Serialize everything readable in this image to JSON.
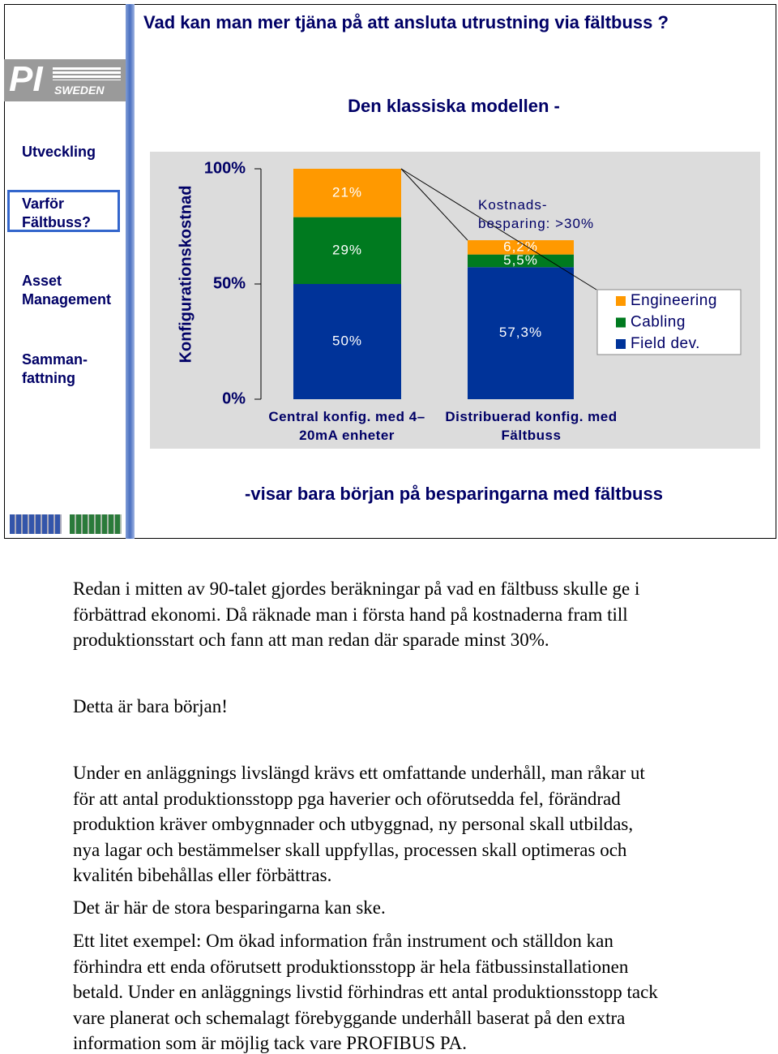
{
  "slide": {
    "title": "Vad kan man mer tjäna på att ansluta utrustning via fältbuss ?",
    "logo": "PI",
    "logo_sub": "SWEDEN",
    "nav": [
      "Utveckling",
      "Varför Fältbuss?",
      "Asset Management",
      "Samman-fattning"
    ],
    "subtitle": "Den klassiska modellen -",
    "footer": "-visar bara början på besparingarna med fältbuss"
  },
  "chart_data": {
    "type": "stacked-bar",
    "y_label": "Konfigurationskostnad",
    "annotation": "Kostnads-besparing: >30%",
    "categories": [
      "Central konfig. med 4–20mA enheter",
      "Distribuerad konfig. med Fältbuss"
    ],
    "series": [
      {
        "name": "Field dev.",
        "color": "#003399",
        "values": [
          50,
          57.3
        ],
        "value_labels": [
          "50%",
          "57,3%"
        ]
      },
      {
        "name": "Cabling",
        "color": "#007a1f",
        "values": [
          29,
          5.5
        ],
        "value_labels": [
          "29%",
          "5,5%"
        ]
      },
      {
        "name": "Engineering",
        "color": "#ff9900",
        "values": [
          21,
          6.2
        ],
        "value_labels": [
          "21%",
          "6,2%"
        ]
      }
    ],
    "ylim": [
      0,
      100
    ],
    "yticks": [
      {
        "value": 0,
        "label": "0%"
      },
      {
        "value": 50,
        "label": "50%"
      },
      {
        "value": 100,
        "label": "100%"
      }
    ]
  },
  "body": {
    "paragraphs": [
      [
        "Redan i mitten av 90-talet gjordes beräkningar på vad en fältbuss skulle ge i",
        "förbättrad ekonomi. Då räknade man i första hand på kostnaderna fram till",
        "produktionsstart och fann att man redan där sparade minst 30%."
      ],
      [
        "Detta är bara början!"
      ],
      [
        "Under en anläggnings livslängd krävs ett omfattande underhåll, man råkar ut",
        "för att antal produktionsstopp pga haverier och oförutsedda fel, förändrad",
        "produktion kräver ombygnnader och utbyggnad, ny personal skall utbildas,",
        "nya lagar och bestämmelser skall uppfyllas, processen skall optimeras och",
        "kvalitén bibehållas eller förbättras."
      ],
      [
        "Det är här de stora besparingarna kan ske."
      ],
      [
        "Ett litet exempel: Om ökad information från instrument och ställdon kan",
        "förhindra ett enda oförutsett produktionsstopp är hela fätbussinstallationen",
        "betald. Under en anläggnings livstid förhindras ett antal produktionsstopp tack",
        "vare planerat och schemalagt förebyggande underhåll baserat på den extra",
        "information som är möjlig tack vare PROFIBUS PA."
      ]
    ]
  }
}
